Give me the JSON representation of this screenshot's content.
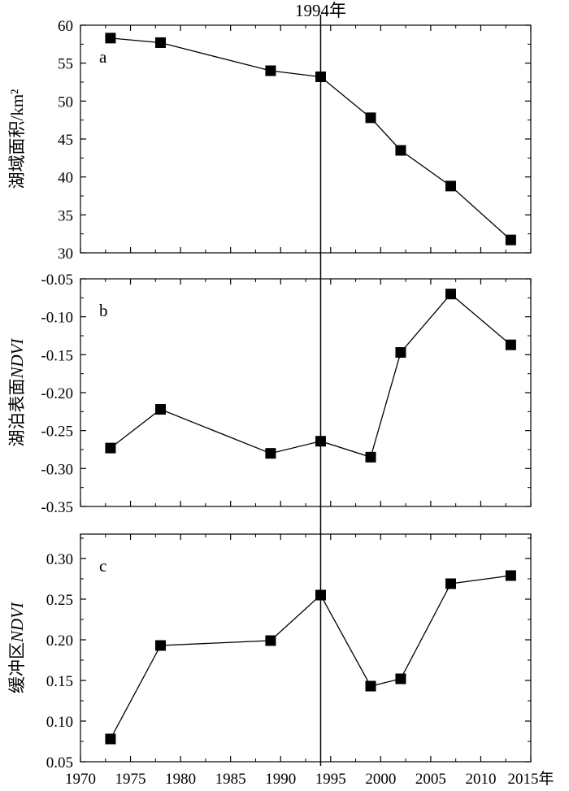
{
  "chart_data": [
    {
      "type": "line",
      "panel_label": "a",
      "ylabel": "湖域面积/km²",
      "xlim": [
        1970,
        2015
      ],
      "ylim": [
        30,
        60
      ],
      "yticks": [
        30,
        35,
        40,
        45,
        50,
        55,
        60
      ],
      "ytick_labels": [
        "30",
        "35",
        "40",
        "45",
        "50",
        "55",
        "60"
      ],
      "series": [
        {
          "x": [
            1973,
            1978,
            1989,
            1994,
            1999,
            2002,
            2007,
            2013
          ],
          "y": [
            58.3,
            57.7,
            54.0,
            53.2,
            47.8,
            43.5,
            38.8,
            31.7
          ]
        }
      ]
    },
    {
      "type": "line",
      "panel_label": "b",
      "ylabel": "湖泊表面NDVI",
      "ylabel_plain": "湖泊表面",
      "ylabel_italic": "NDVI",
      "xlim": [
        1970,
        2015
      ],
      "ylim": [
        -0.35,
        -0.05
      ],
      "yticks": [
        -0.35,
        -0.3,
        -0.25,
        -0.2,
        -0.15,
        -0.1,
        -0.05
      ],
      "ytick_labels": [
        "-0.35",
        "-0.30",
        "-0.25",
        "-0.20",
        "-0.15",
        "-0.10",
        "-0.05"
      ],
      "series": [
        {
          "x": [
            1973,
            1978,
            1989,
            1994,
            1999,
            2002,
            2007,
            2013
          ],
          "y": [
            -0.273,
            -0.222,
            -0.28,
            -0.264,
            -0.285,
            -0.147,
            -0.07,
            -0.137
          ]
        }
      ]
    },
    {
      "type": "line",
      "panel_label": "c",
      "ylabel": "缓冲区NDVI",
      "ylabel_plain": "缓冲区",
      "ylabel_italic": "NDVI",
      "xlim": [
        1970,
        2015
      ],
      "ylim": [
        0.05,
        0.33
      ],
      "yticks": [
        0.05,
        0.1,
        0.15,
        0.2,
        0.25,
        0.3
      ],
      "ytick_labels": [
        "0.05",
        "0.10",
        "0.15",
        "0.20",
        "0.25",
        "0.30"
      ],
      "series": [
        {
          "x": [
            1973,
            1978,
            1989,
            1994,
            1999,
            2002,
            2007,
            2013
          ],
          "y": [
            0.078,
            0.193,
            0.199,
            0.255,
            0.143,
            0.152,
            0.269,
            0.279
          ]
        }
      ]
    }
  ],
  "x_axis": {
    "ticks": [
      1970,
      1975,
      1980,
      1985,
      1990,
      1995,
      2000,
      2005,
      2010,
      2015
    ],
    "tick_labels": [
      "1970",
      "1975",
      "1980",
      "1985",
      "1990",
      "1995",
      "2000",
      "2005",
      "2010",
      "2015年"
    ]
  },
  "reference_line": {
    "x": 1994,
    "label": "1994年"
  },
  "style": {
    "marker_color": "#000000",
    "line_color": "#000000",
    "axis_color": "#000000"
  }
}
